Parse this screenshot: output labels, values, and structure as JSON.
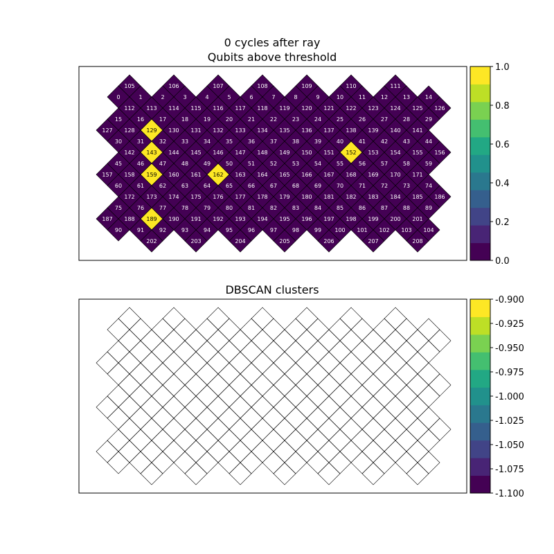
{
  "chart_data": [
    {
      "type": "heatmap",
      "title_line1": "0 cycles after ray",
      "title_line2": "Qubits above threshold",
      "colorbar": {
        "min": 0.0,
        "max": 1.0,
        "ticks": [
          "0.0",
          "0.2",
          "0.4",
          "0.6",
          "0.8",
          "1.0"
        ],
        "tick_values": [
          0.0,
          0.2,
          0.4,
          0.6,
          0.8,
          1.0
        ]
      },
      "highlighted_qubits": [
        129,
        143,
        152,
        159,
        162,
        189
      ],
      "rows": [
        [
          105,
          106,
          107,
          108,
          109,
          110,
          111
        ],
        [
          0,
          1,
          2,
          3,
          4,
          5,
          6,
          7,
          8,
          9,
          10,
          11,
          12,
          13,
          14
        ],
        [
          112,
          113,
          114,
          115,
          116,
          117,
          118,
          119,
          120,
          121,
          122,
          123,
          124,
          125,
          126
        ],
        [
          15,
          16,
          17,
          18,
          19,
          20,
          21,
          22,
          23,
          24,
          25,
          26,
          27,
          28,
          29
        ],
        [
          127,
          128,
          129,
          130,
          131,
          132,
          133,
          134,
          135,
          136,
          137,
          138,
          139,
          140,
          141
        ],
        [
          30,
          31,
          32,
          33,
          34,
          35,
          36,
          37,
          38,
          39,
          40,
          41,
          42,
          43,
          44
        ],
        [
          142,
          143,
          144,
          145,
          146,
          147,
          148,
          149,
          150,
          151,
          152,
          153,
          154,
          155,
          156
        ],
        [
          45,
          46,
          47,
          48,
          49,
          50,
          51,
          52,
          53,
          54,
          55,
          56,
          57,
          58,
          59
        ],
        [
          157,
          158,
          159,
          160,
          161,
          162,
          163,
          164,
          165,
          166,
          167,
          168,
          169,
          170,
          171
        ],
        [
          60,
          61,
          62,
          63,
          64,
          65,
          66,
          67,
          68,
          69,
          70,
          71,
          72,
          73,
          74
        ],
        [
          172,
          173,
          174,
          175,
          176,
          177,
          178,
          179,
          180,
          181,
          182,
          183,
          184,
          185,
          186
        ],
        [
          75,
          76,
          77,
          78,
          79,
          80,
          81,
          82,
          83,
          84,
          85,
          86,
          87,
          88,
          89
        ],
        [
          187,
          188,
          189,
          190,
          191,
          192,
          193,
          194,
          195,
          196,
          197,
          198,
          199,
          200,
          201
        ],
        [
          90,
          91,
          92,
          93,
          94,
          95,
          96,
          97,
          98,
          99,
          100,
          101,
          102,
          103,
          104
        ],
        [
          202,
          203,
          204,
          205,
          206,
          207,
          208
        ]
      ],
      "colors": {
        "low": "#440154",
        "high": "#fde725",
        "edge": "#000000",
        "label_low": "#ffffff",
        "label_high": "#000000"
      }
    },
    {
      "type": "heatmap",
      "title": "DBSCAN clusters",
      "colorbar": {
        "min": -1.1,
        "max": -0.9,
        "ticks": [
          "-0.900",
          "-0.925",
          "-0.950",
          "-0.975",
          "-1.000",
          "-1.025",
          "-1.050",
          "-1.075",
          "-1.100"
        ],
        "tick_values": [
          -0.9,
          -0.925,
          -0.95,
          -0.975,
          -1.0,
          -1.025,
          -1.05,
          -1.075,
          -1.1
        ]
      },
      "note": "same qubit lattice, cells drawn as empty outlines"
    }
  ],
  "viridis": [
    "#440154",
    "#482475",
    "#414487",
    "#355f8d",
    "#2a788e",
    "#21918c",
    "#22a884",
    "#44bf70",
    "#7ad151",
    "#bddf26",
    "#fde725"
  ]
}
